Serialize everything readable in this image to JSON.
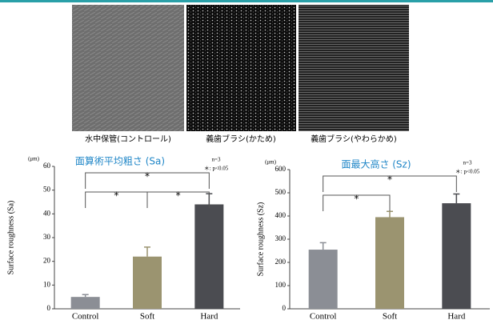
{
  "images": [
    {
      "caption": "水中保管(コントロール)"
    },
    {
      "caption": "義歯ブラシ(かため)"
    },
    {
      "caption": "義歯ブラシ(やわらかめ)"
    }
  ],
  "chart_data": [
    {
      "type": "bar",
      "title": "面算術平均粗さ (Sa)",
      "y_label": "Surface roughness (Sa)",
      "unit": "(μm)",
      "notes": [
        "n=3",
        "＊: p<0.05"
      ],
      "categories": [
        "Control",
        "Soft",
        "Hard"
      ],
      "values": [
        5,
        22,
        44
      ],
      "errors": [
        1,
        4,
        4.5
      ],
      "colors": [
        "#8b8e95",
        "#9b9470",
        "#4b4c51"
      ],
      "ylim": [
        0,
        60
      ],
      "yticks": [
        0,
        10,
        20,
        30,
        40,
        50,
        60
      ],
      "significance": [
        {
          "from": "Control",
          "to": "Hard",
          "label": "*"
        },
        {
          "from": "Control",
          "to": "Soft",
          "label": "*"
        },
        {
          "from": "Soft",
          "to": "Hard",
          "label": "*"
        }
      ]
    },
    {
      "type": "bar",
      "title": "面最大高さ (Sz)",
      "y_label": "Surface roughness (Sz)",
      "unit": "(μm)",
      "notes": [
        "n=3",
        "＊: p<0.05"
      ],
      "categories": [
        "Control",
        "Soft",
        "Hard"
      ],
      "values": [
        255,
        395,
        455
      ],
      "errors": [
        30,
        25,
        40
      ],
      "colors": [
        "#8b8e95",
        "#9b9470",
        "#4b4c51"
      ],
      "ylim": [
        0,
        600
      ],
      "yticks": [
        0,
        100,
        200,
        300,
        400,
        500,
        600
      ],
      "significance": [
        {
          "from": "Control",
          "to": "Hard",
          "label": "*"
        },
        {
          "from": "Control",
          "to": "Soft",
          "label": "*"
        }
      ]
    }
  ]
}
